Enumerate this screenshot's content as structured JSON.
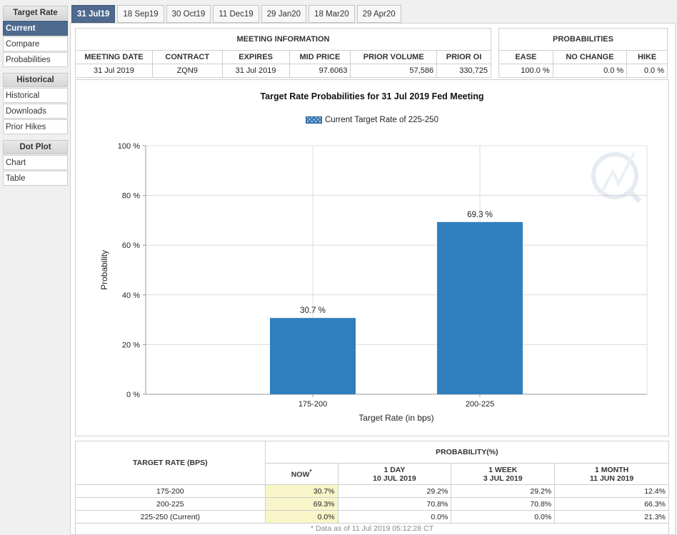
{
  "sidebar": {
    "sections": [
      {
        "title": "Target Rate",
        "items": [
          "Current",
          "Compare",
          "Probabilities"
        ]
      },
      {
        "title": "Historical",
        "items": [
          "Historical",
          "Downloads",
          "Prior Hikes"
        ]
      },
      {
        "title": "Dot Plot",
        "items": [
          "Chart",
          "Table"
        ]
      }
    ],
    "active_item": "Current"
  },
  "tabs": [
    "31 Jul19",
    "18 Sep19",
    "30 Oct19",
    "11 Dec19",
    "29 Jan20",
    "18 Mar20",
    "29 Apr20"
  ],
  "active_tab": "31 Jul19",
  "meeting_info": {
    "title": "MEETING INFORMATION",
    "headers": [
      "MEETING DATE",
      "CONTRACT",
      "EXPIRES",
      "MID PRICE",
      "PRIOR VOLUME",
      "PRIOR OI"
    ],
    "values": [
      "31 Jul 2019",
      "ZQN9",
      "31 Jul 2019",
      "97.6063",
      "57,586",
      "330,725"
    ]
  },
  "probabilities": {
    "title": "PROBABILITIES",
    "headers": [
      "EASE",
      "NO CHANGE",
      "HIKE"
    ],
    "values": [
      "100.0 %",
      "0.0 %",
      "0.0 %"
    ]
  },
  "chart_data": {
    "type": "bar",
    "title": "Target Rate Probabilities for 31 Jul 2019 Fed Meeting",
    "legend": "Current Target Rate of 225-250",
    "categories": [
      "175-200",
      "200-225"
    ],
    "values": [
      30.7,
      69.3
    ],
    "data_labels": [
      "30.7 %",
      "69.3 %"
    ],
    "xlabel": "Target Rate (in bps)",
    "ylabel": "Probability",
    "ylim": [
      0,
      100
    ],
    "yticks": [
      "0 %",
      "20 %",
      "40 %",
      "60 %",
      "80 %",
      "100 %"
    ],
    "bar_color": "#2f7fbf",
    "grid": true
  },
  "probability_table": {
    "col_target": "TARGET RATE (BPS)",
    "col_group": "PROBABILITY(%)",
    "sub_headers": [
      {
        "line1": "NOW",
        "line2": ""
      },
      {
        "line1": "1 DAY",
        "line2": "10 JUL 2019"
      },
      {
        "line1": "1 WEEK",
        "line2": "3 JUL 2019"
      },
      {
        "line1": "1 MONTH",
        "line2": "11 JUN 2019"
      }
    ],
    "now_mark": "*",
    "rows": [
      {
        "rate": "175-200",
        "values": [
          "30.7%",
          "29.2%",
          "29.2%",
          "12.4%"
        ]
      },
      {
        "rate": "200-225",
        "values": [
          "69.3%",
          "70.8%",
          "70.8%",
          "66.3%"
        ]
      },
      {
        "rate": "225-250 (Current)",
        "values": [
          "0.0%",
          "0.0%",
          "0.0%",
          "21.3%"
        ]
      }
    ],
    "footnote": "* Data as of 11 Jul 2019 05:12:28 CT"
  }
}
